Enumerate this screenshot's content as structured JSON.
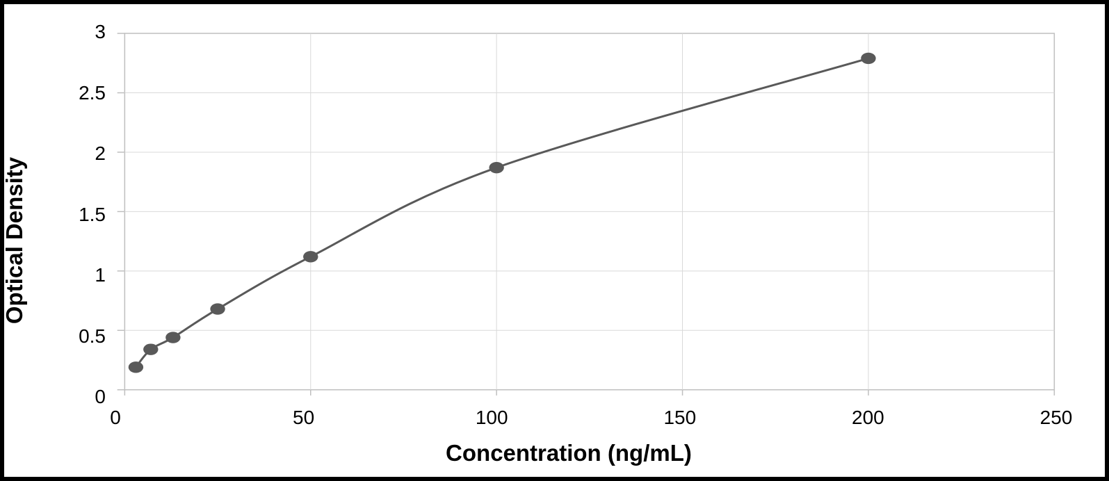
{
  "chart": {
    "type": "scatter-line",
    "xlabel": "Concentration (ng/mL)",
    "ylabel": "Optical Density",
    "label_fontsize": 33,
    "label_fontweight": 700,
    "tick_fontsize": 28,
    "background_color": "#ffffff",
    "frame_border_color": "#000000",
    "frame_border_width": 6,
    "grid_color": "#d9d9d9",
    "grid_width": 1,
    "axis_border_color": "#bfbfbf",
    "axis_border_width": 1.5,
    "line_color": "#595959",
    "line_width": 3,
    "marker_color": "#595959",
    "marker_radius": 8,
    "xlim": [
      0,
      250
    ],
    "ylim": [
      0,
      3
    ],
    "xticks": [
      0,
      50,
      100,
      150,
      200,
      250
    ],
    "yticks": [
      0,
      0.5,
      1,
      1.5,
      2,
      2.5,
      3
    ],
    "points": [
      {
        "x": 3,
        "y": 0.19
      },
      {
        "x": 7,
        "y": 0.34
      },
      {
        "x": 13,
        "y": 0.44
      },
      {
        "x": 25,
        "y": 0.68
      },
      {
        "x": 50,
        "y": 1.12
      },
      {
        "x": 100,
        "y": 1.87
      },
      {
        "x": 200,
        "y": 2.79
      }
    ]
  }
}
